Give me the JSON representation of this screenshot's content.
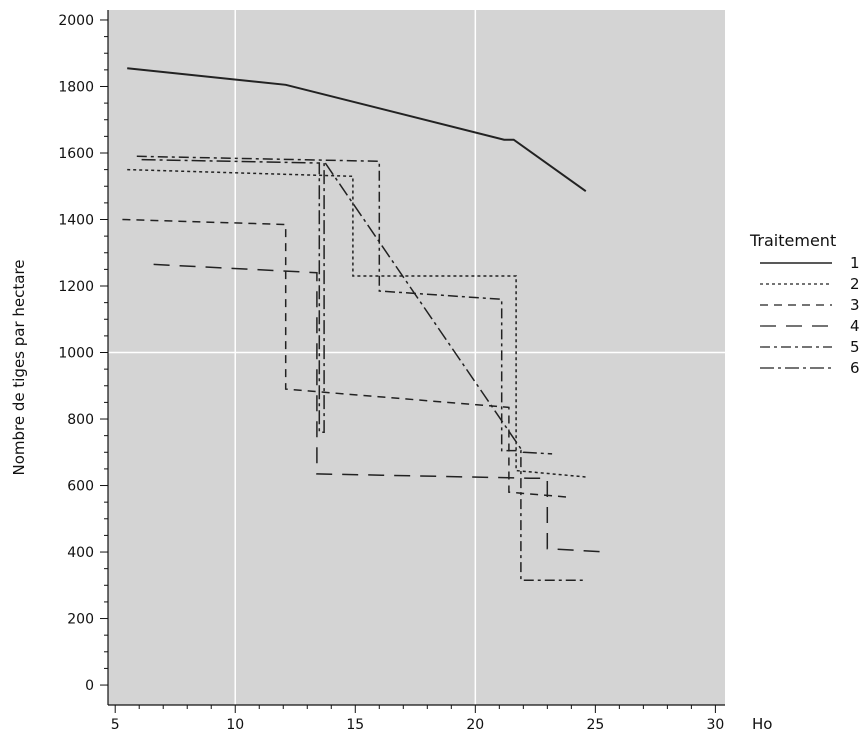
{
  "chart_data": {
    "type": "line",
    "title": "",
    "xlabel": "Ho",
    "ylabel": "Nombre de tiges par hectare",
    "xlim": [
      5,
      30
    ],
    "ylim": [
      0,
      2000
    ],
    "x_ticks": [
      5,
      10,
      15,
      20,
      25,
      30
    ],
    "y_ticks": [
      0,
      200,
      400,
      600,
      800,
      1000,
      1200,
      1400,
      1600,
      1800,
      2000
    ],
    "grid": true,
    "background": "#d4d4d4",
    "grid_color": "#ffffff",
    "line_color": "#222222",
    "legend": {
      "title": "Traitement",
      "position": "right"
    },
    "series": [
      {
        "name": "1",
        "dash": "solid",
        "x": [
          5.5,
          12.1,
          21.2,
          21.6,
          24.6
        ],
        "y": [
          1855,
          1805,
          1640,
          1640,
          1485
        ]
      },
      {
        "name": "2",
        "dash": "dotted",
        "x": [
          5.5,
          14.9,
          14.9,
          21.7,
          21.7,
          24.7
        ],
        "y": [
          1550,
          1530,
          1230,
          1230,
          645,
          625
        ]
      },
      {
        "name": "3",
        "dash": "short-dash",
        "x": [
          5.3,
          12.1,
          12.1,
          21.4,
          21.4,
          23.9
        ],
        "y": [
          1400,
          1385,
          890,
          835,
          580,
          565
        ]
      },
      {
        "name": "4",
        "dash": "long-dash",
        "x": [
          6.6,
          13.4,
          13.4,
          22.3,
          22.3,
          23.0,
          23.0,
          25.5
        ],
        "y": [
          1265,
          1240,
          635,
          622,
          622,
          622,
          410,
          400
        ]
      },
      {
        "name": "5",
        "dash": "dash-dot",
        "x": [
          5.9,
          16.0,
          16.0,
          21.1,
          21.1,
          21.9,
          21.9,
          24.6
        ],
        "y": [
          1590,
          1575,
          1185,
          1160,
          705,
          705,
          315,
          315
        ]
      },
      {
        "name": "6",
        "dash": "long-dash-dot",
        "x": [
          6.1,
          13.5,
          13.5,
          13.7,
          13.7,
          22.0,
          22.0,
          23.2
        ],
        "y": [
          1580,
          1570,
          760,
          760,
          1575,
          700,
          700,
          695
        ]
      }
    ]
  }
}
